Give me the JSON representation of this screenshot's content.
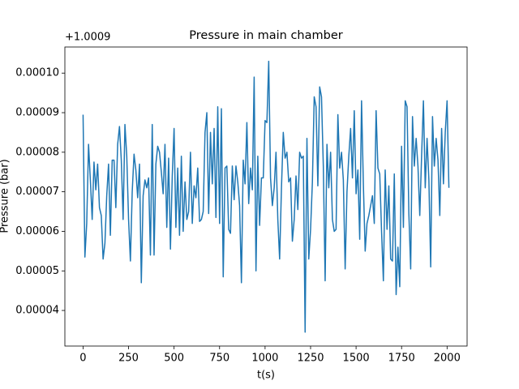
{
  "chart_data": {
    "type": "line",
    "title": "Pressure in main chamber",
    "xlabel": "t(s)",
    "ylabel": "Pressure (bar)",
    "y_offset_text": "+1.0009",
    "x": [
      0,
      10,
      20,
      30,
      40,
      50,
      60,
      70,
      80,
      90,
      100,
      110,
      120,
      130,
      140,
      150,
      160,
      170,
      180,
      190,
      200,
      210,
      220,
      230,
      240,
      250,
      260,
      270,
      280,
      290,
      300,
      310,
      320,
      330,
      340,
      350,
      360,
      370,
      380,
      390,
      400,
      410,
      420,
      430,
      440,
      450,
      460,
      470,
      480,
      490,
      500,
      510,
      520,
      530,
      540,
      550,
      560,
      570,
      580,
      590,
      600,
      610,
      620,
      630,
      640,
      650,
      660,
      670,
      680,
      690,
      700,
      710,
      720,
      730,
      740,
      750,
      760,
      770,
      780,
      790,
      800,
      810,
      820,
      830,
      840,
      850,
      860,
      870,
      880,
      890,
      900,
      910,
      920,
      930,
      940,
      950,
      960,
      970,
      980,
      990,
      1000,
      1010,
      1020,
      1030,
      1040,
      1050,
      1060,
      1070,
      1080,
      1090,
      1100,
      1110,
      1120,
      1130,
      1140,
      1150,
      1160,
      1170,
      1180,
      1190,
      1200,
      1210,
      1220,
      1230,
      1240,
      1250,
      1260,
      1270,
      1280,
      1290,
      1300,
      1310,
      1320,
      1330,
      1340,
      1350,
      1360,
      1370,
      1380,
      1390,
      1400,
      1410,
      1420,
      1430,
      1440,
      1450,
      1460,
      1470,
      1480,
      1490,
      1500,
      1510,
      1520,
      1530,
      1540,
      1550,
      1560,
      1570,
      1580,
      1590,
      1600,
      1610,
      1620,
      1630,
      1640,
      1650,
      1660,
      1670,
      1680,
      1690,
      1700,
      1710,
      1720,
      1730,
      1740,
      1750,
      1760,
      1770,
      1780,
      1790,
      1800,
      1810,
      1820,
      1830,
      1840,
      1850,
      1860,
      1870,
      1880,
      1890,
      1900,
      1910,
      1920,
      1930,
      1940,
      1950,
      1960,
      1970,
      1980,
      1990,
      2000,
      2010
    ],
    "series": [
      {
        "name": "Pressure",
        "color": "#1f77b4",
        "values": [
          8.95e-05,
          5.35e-05,
          6.2e-05,
          8.2e-05,
          7.3e-05,
          6.3e-05,
          7.75e-05,
          7.05e-05,
          7.7e-05,
          6.6e-05,
          6.4e-05,
          5.3e-05,
          5.7e-05,
          6.9e-05,
          7.7e-05,
          5.9e-05,
          7.8e-05,
          7.8e-05,
          6.6e-05,
          8.2e-05,
          8.65e-05,
          7.8e-05,
          6.3e-05,
          8.7e-05,
          7.9e-05,
          6.3e-05,
          5.25e-05,
          7e-05,
          7.95e-05,
          7.55e-05,
          6.85e-05,
          7.7e-05,
          4.7e-05,
          6.9e-05,
          7.3e-05,
          7.1e-05,
          7.35e-05,
          5.4e-05,
          8.7e-05,
          5.4e-05,
          7.7e-05,
          8.15e-05,
          8e-05,
          7.5e-05,
          6.95e-05,
          8.2e-05,
          6.1e-05,
          7.85e-05,
          5.55e-05,
          7.4e-05,
          8.6e-05,
          6.1e-05,
          7.6e-05,
          5.9e-05,
          7.9e-05,
          6e-05,
          7.25e-05,
          6.3e-05,
          6.5e-05,
          8e-05,
          6.2e-05,
          7.15e-05,
          6.85e-05,
          7.6e-05,
          6.25e-05,
          6.3e-05,
          6.5e-05,
          8.5e-05,
          9e-05,
          6.45e-05,
          8.5e-05,
          7.2e-05,
          8.6e-05,
          6.35e-05,
          9.15e-05,
          6.2e-05,
          9.1e-05,
          4.85e-05,
          7.6e-05,
          7.65e-05,
          6.05e-05,
          5.95e-05,
          7.65e-05,
          6.8e-05,
          7.65e-05,
          7.25e-05,
          6.65e-05,
          4.7e-05,
          7.8e-05,
          7.2e-05,
          8.75e-05,
          6.7e-05,
          7.6e-05,
          7.05e-05,
          9.9e-05,
          5e-05,
          7.9e-05,
          6.15e-05,
          7.35e-05,
          7.35e-05,
          8.8e-05,
          8.75e-05,
          0.000103,
          7.35e-05,
          6.65e-05,
          7.1e-05,
          8e-05,
          6.3e-05,
          5.3e-05,
          7.1e-05,
          8.5e-05,
          7.85e-05,
          8e-05,
          7.25e-05,
          7.35e-05,
          5.75e-05,
          6.3e-05,
          7.4e-05,
          6.55e-05,
          8e-05,
          7.85e-05,
          7.9e-05,
          3.45e-05,
          8.35e-05,
          5.3e-05,
          6.05e-05,
          7.25e-05,
          9.4e-05,
          9.15e-05,
          7.15e-05,
          9.65e-05,
          9.4e-05,
          7.65e-05,
          4.75e-05,
          8.2e-05,
          7.1e-05,
          8e-05,
          6.3e-05,
          6e-05,
          6.05e-05,
          8.95e-05,
          7.6e-05,
          8e-05,
          7.3e-05,
          5.05e-05,
          7e-05,
          7.9e-05,
          8.6e-05,
          7.35e-05,
          9.05e-05,
          6.95e-05,
          7.55e-05,
          5.8e-05,
          9.3e-05,
          7.2e-05,
          5.5e-05,
          6.2e-05,
          6.4e-05,
          6.65e-05,
          6.9e-05,
          6.2e-05,
          9.05e-05,
          7.6e-05,
          7.45e-05,
          6e-05,
          4.75e-05,
          7.55e-05,
          6.05e-05,
          7.15e-05,
          5.3e-05,
          5.25e-05,
          7.45e-05,
          4.4e-05,
          5.6e-05,
          4.6e-05,
          8.15e-05,
          6.1e-05,
          9.3e-05,
          9.15e-05,
          6.45e-05,
          5.05e-05,
          8.9e-05,
          7.65e-05,
          8.35e-05,
          7.65e-05,
          6.4e-05,
          7.9e-05,
          9.3e-05,
          7.1e-05,
          8.35e-05,
          7.3e-05,
          5.1e-05,
          8.9e-05,
          7.65e-05,
          8.35e-05,
          7.8e-05,
          6.4e-05,
          8.6e-05,
          7.2e-05,
          8.5e-05,
          9.3e-05,
          7.1e-05
        ]
      }
    ],
    "xlim": [
      -100,
      2110
    ],
    "ylim": [
      3.1e-05,
      0.0001066
    ],
    "xticks": [
      0,
      250,
      500,
      750,
      1000,
      1250,
      1500,
      1750,
      2000
    ],
    "yticks": [
      4e-05,
      5e-05,
      6e-05,
      7e-05,
      8e-05,
      9e-05,
      {
        "value": 0.0001,
        "label": "0.00010"
      }
    ]
  }
}
